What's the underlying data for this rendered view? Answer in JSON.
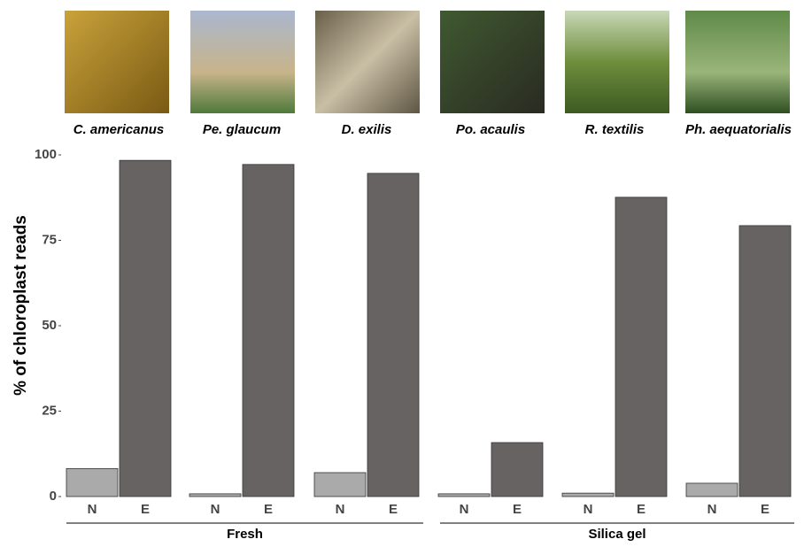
{
  "chart_data": {
    "type": "bar",
    "y_label": "% of chloroplast reads",
    "categories": [
      "C. americanus",
      "Pe. glaucum",
      "D. exilis",
      "Po. acaulis",
      "R. textilis",
      "Ph. aequatorialis"
    ],
    "group_labels": [
      "Fresh",
      "Silica gel"
    ],
    "series": [
      {
        "name": "N",
        "color": "#aaaaaa",
        "values": [
          8.2,
          0.8,
          7,
          0.8,
          1,
          3.9
        ]
      },
      {
        "name": "E",
        "color": "#676363",
        "values": [
          98.4,
          97.2,
          94.6,
          15.8,
          87.6,
          79.3
        ]
      }
    ],
    "ylim": [
      0,
      100
    ],
    "yticks": [
      0,
      25,
      50,
      75,
      100
    ]
  }
}
